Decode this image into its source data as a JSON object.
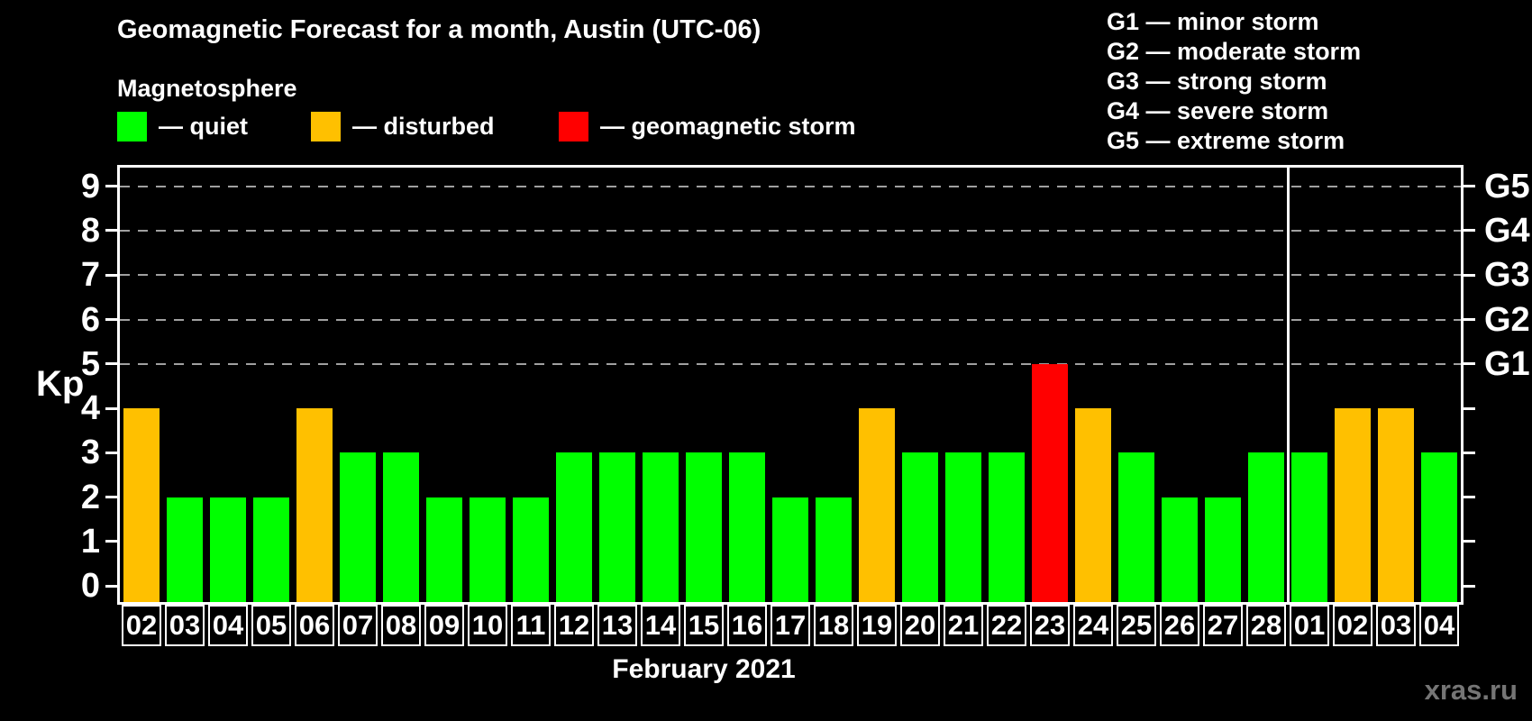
{
  "header": {
    "title": "Geomagnetic Forecast for a month, Austin (UTC-06)",
    "subtitle": "Magnetosphere"
  },
  "legend": {
    "items": [
      {
        "key": "quiet",
        "label": "— quiet",
        "color": "#00ff00"
      },
      {
        "key": "disturbed",
        "label": "— disturbed",
        "color": "#ffc000"
      },
      {
        "key": "storm",
        "label": "— geomagnetic storm",
        "color": "#ff0000"
      }
    ]
  },
  "storm_scale_legend": {
    "items": [
      "G1 — minor storm",
      "G2 — moderate storm",
      "G3 — strong storm",
      "G4 — severe storm",
      "G5 — extreme storm"
    ]
  },
  "watermark": "xras.ru",
  "chart_data": {
    "type": "bar",
    "title": "Geomagnetic Forecast for a month, Austin (UTC-06)",
    "xlabel": "February 2021",
    "ylabel": "Kp",
    "ylim": [
      0,
      9
    ],
    "yticks": [
      0,
      1,
      2,
      3,
      4,
      5,
      6,
      7,
      8,
      9
    ],
    "gridlines_at": [
      5,
      6,
      7,
      8,
      9
    ],
    "grid": "dashed horizontal at storm levels only",
    "legend_position": "top",
    "right_axis": {
      "labels": [
        "G1",
        "G2",
        "G3",
        "G4",
        "G5"
      ],
      "levels": [
        5,
        6,
        7,
        8,
        9
      ]
    },
    "categories": [
      "02",
      "03",
      "04",
      "05",
      "06",
      "07",
      "08",
      "09",
      "10",
      "11",
      "12",
      "13",
      "14",
      "15",
      "16",
      "17",
      "18",
      "19",
      "20",
      "21",
      "22",
      "23",
      "24",
      "25",
      "26",
      "27",
      "28",
      "01",
      "02",
      "03",
      "04"
    ],
    "values": [
      4,
      2,
      2,
      2,
      4,
      3,
      3,
      2,
      2,
      2,
      3,
      3,
      3,
      3,
      3,
      2,
      2,
      4,
      3,
      3,
      3,
      5,
      4,
      3,
      2,
      2,
      3,
      3,
      4,
      4,
      3
    ],
    "statuses": [
      "disturbed",
      "quiet",
      "quiet",
      "quiet",
      "disturbed",
      "quiet",
      "quiet",
      "quiet",
      "quiet",
      "quiet",
      "quiet",
      "quiet",
      "quiet",
      "quiet",
      "quiet",
      "quiet",
      "quiet",
      "disturbed",
      "quiet",
      "quiet",
      "quiet",
      "storm",
      "disturbed",
      "quiet",
      "quiet",
      "quiet",
      "quiet",
      "quiet",
      "disturbed",
      "disturbed",
      "quiet"
    ],
    "month_boundary_after_index": 26,
    "colors": {
      "quiet": "#00ff00",
      "disturbed": "#ffc000",
      "storm": "#ff0000"
    }
  }
}
